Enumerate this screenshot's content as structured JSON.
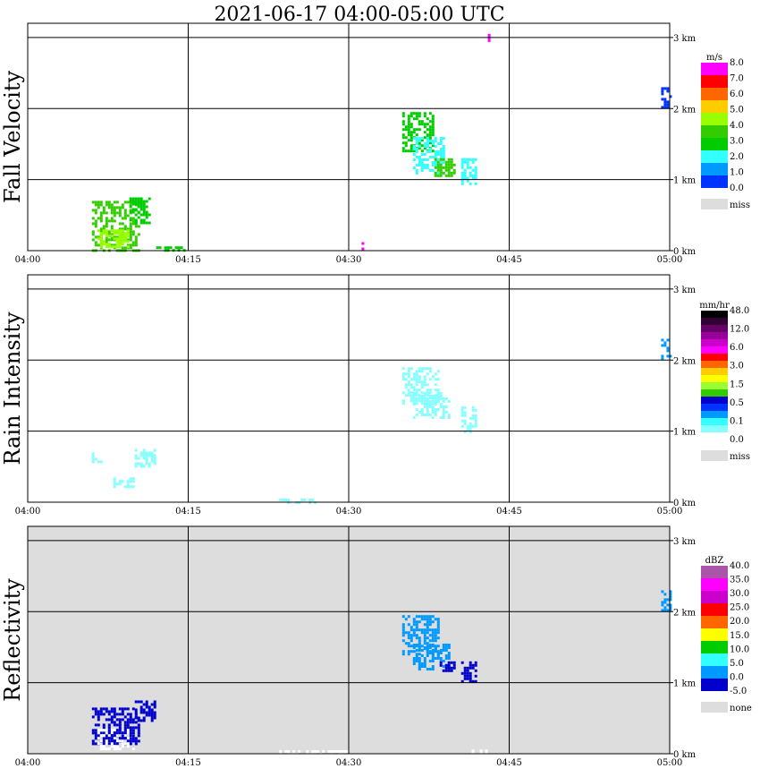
{
  "title": "2021-06-17   04:00-05:00 UTC",
  "x_ticks": [
    "04:00",
    "04:15",
    "04:30",
    "04:45",
    "05:00"
  ],
  "y_ticks": [
    "0 km",
    "1 km",
    "2 km",
    "3 km"
  ],
  "chart_data": [
    {
      "type": "heatmap",
      "title": "Fall Velocity",
      "ylabel": "Fall Velocity",
      "xlim": [
        0,
        60
      ],
      "ylim": [
        0,
        3.2
      ],
      "background": "#ffffff",
      "legend": {
        "unit": "m/s",
        "placement": "right",
        "colors": [
          "#0033ff",
          "#0099ff",
          "#33ffff",
          "#00cc00",
          "#33cc00",
          "#99ff00",
          "#ffcc00",
          "#ff6600",
          "#ff0000",
          "#ff00ff"
        ],
        "labels": [
          "0.0",
          "1.0",
          "2.0",
          "3.0",
          "4.0",
          "5.0",
          "6.0",
          "7.0",
          "8.0"
        ],
        "miss_color": "#dddddd",
        "miss_label": "miss"
      },
      "regions": [
        {
          "x": [
            6,
            10.5
          ],
          "y": [
            0,
            0.7
          ],
          "color": "#33cc00"
        },
        {
          "x": [
            6.5,
            9.5
          ],
          "y": [
            0.05,
            0.3
          ],
          "color": "#99ff00"
        },
        {
          "x": [
            9.5,
            11.5
          ],
          "y": [
            0.4,
            0.75
          ],
          "color": "#00cc00"
        },
        {
          "x": [
            35,
            38
          ],
          "y": [
            1.4,
            1.95
          ],
          "color": "#00cc00"
        },
        {
          "x": [
            36,
            39
          ],
          "y": [
            1.1,
            1.6
          ],
          "color": "#33ffff"
        },
        {
          "x": [
            38,
            40
          ],
          "y": [
            1.05,
            1.3
          ],
          "color": "#33cc00"
        },
        {
          "x": [
            40.5,
            42
          ],
          "y": [
            0.95,
            1.3
          ],
          "color": "#33ffff"
        },
        {
          "x": [
            59.2,
            60
          ],
          "y": [
            2.0,
            2.3
          ],
          "color": "#0033ff"
        },
        {
          "x": [
            43,
            43.2
          ],
          "y": [
            2.95,
            3.05
          ],
          "color": "#ff00ff"
        },
        {
          "x": [
            31.2,
            31.4
          ],
          "y": [
            0.0,
            0.12
          ],
          "color": "#ff00ff"
        },
        {
          "x": [
            12,
            15
          ],
          "y": [
            0.0,
            0.06
          ],
          "color": "#00cc00"
        }
      ]
    },
    {
      "type": "heatmap",
      "title": "Rain Intensity",
      "ylabel": "Rain Intensity",
      "xlim": [
        0,
        60
      ],
      "ylim": [
        0,
        3.2
      ],
      "background": "#ffffff",
      "legend": {
        "unit": "mm/hr",
        "placement": "right",
        "colors": [
          "#ffffff",
          "#88ffff",
          "#33ffff",
          "#0099ff",
          "#0033ff",
          "#0000cc",
          "#33cc00",
          "#99ff33",
          "#ffff00",
          "#ffcc00",
          "#ff6600",
          "#ff0000",
          "#ff00ff",
          "#cc00cc",
          "#990099",
          "#660066",
          "#330033",
          "#000000"
        ],
        "labels": [
          "0.0",
          "0.1",
          "0.5",
          "1.5",
          "3.0",
          "6.0",
          "12.0",
          "48.0"
        ],
        "miss_color": "#dddddd",
        "miss_label": "miss"
      },
      "regions": [
        {
          "x": [
            6,
            7
          ],
          "y": [
            0.55,
            0.7
          ],
          "color": "#88ffff"
        },
        {
          "x": [
            8,
            10
          ],
          "y": [
            0.2,
            0.35
          ],
          "color": "#88ffff"
        },
        {
          "x": [
            10,
            12
          ],
          "y": [
            0.5,
            0.75
          ],
          "color": "#88ffff"
        },
        {
          "x": [
            35,
            38.5
          ],
          "y": [
            1.4,
            1.9
          ],
          "color": "#88ffff"
        },
        {
          "x": [
            36,
            39.5
          ],
          "y": [
            1.2,
            1.55
          ],
          "color": "#88ffff"
        },
        {
          "x": [
            40.5,
            41.8
          ],
          "y": [
            1.0,
            1.35
          ],
          "color": "#88ffff"
        },
        {
          "x": [
            59.2,
            60
          ],
          "y": [
            2.0,
            2.3
          ],
          "color": "#0099ff"
        },
        {
          "x": [
            23.5,
            27
          ],
          "y": [
            0.0,
            0.05
          ],
          "color": "#88ffff"
        }
      ]
    },
    {
      "type": "heatmap",
      "title": "Reflectivity",
      "ylabel": "Reflectivity",
      "xlim": [
        0,
        60
      ],
      "ylim": [
        0,
        3.2
      ],
      "background": "#dddddd",
      "legend": {
        "unit": "dBZ",
        "placement": "right",
        "colors": [
          "#0000cc",
          "#0099ff",
          "#33ffff",
          "#00cc00",
          "#ffff00",
          "#ff6600",
          "#ff0000",
          "#cc00cc",
          "#ff00ff",
          "#aa55aa"
        ],
        "labels": [
          "-5.0",
          "0.0",
          "5.0",
          "10.0",
          "15.0",
          "20.0",
          "25.0",
          "30.0",
          "35.0",
          "40.0"
        ],
        "miss_color": "#dddddd",
        "miss_label": "none"
      },
      "regions": [
        {
          "x": [
            6,
            10.5
          ],
          "y": [
            0.15,
            0.65
          ],
          "color": "#0000cc"
        },
        {
          "x": [
            6.5,
            10
          ],
          "y": [
            0.05,
            0.35
          ],
          "color": "#ffffff"
        },
        {
          "x": [
            7.5,
            10
          ],
          "y": [
            0.15,
            0.35
          ],
          "color": "#0000cc"
        },
        {
          "x": [
            10,
            12
          ],
          "y": [
            0.45,
            0.75
          ],
          "color": "#0000cc"
        },
        {
          "x": [
            35,
            38.5
          ],
          "y": [
            1.4,
            1.95
          ],
          "color": "#0099ff"
        },
        {
          "x": [
            36,
            39.5
          ],
          "y": [
            1.2,
            1.55
          ],
          "color": "#0099ff"
        },
        {
          "x": [
            38.5,
            40
          ],
          "y": [
            1.15,
            1.3
          ],
          "color": "#0000cc"
        },
        {
          "x": [
            40.5,
            41.8
          ],
          "y": [
            1.0,
            1.3
          ],
          "color": "#0000cc"
        },
        {
          "x": [
            59.2,
            60
          ],
          "y": [
            2.0,
            2.3
          ],
          "color": "#0099ff"
        },
        {
          "x": [
            23.5,
            30
          ],
          "y": [
            0.0,
            0.05
          ],
          "color": "#ffffff"
        },
        {
          "x": [
            41.5,
            43
          ],
          "y": [
            0.0,
            0.06
          ],
          "color": "#ffffff"
        }
      ]
    }
  ]
}
